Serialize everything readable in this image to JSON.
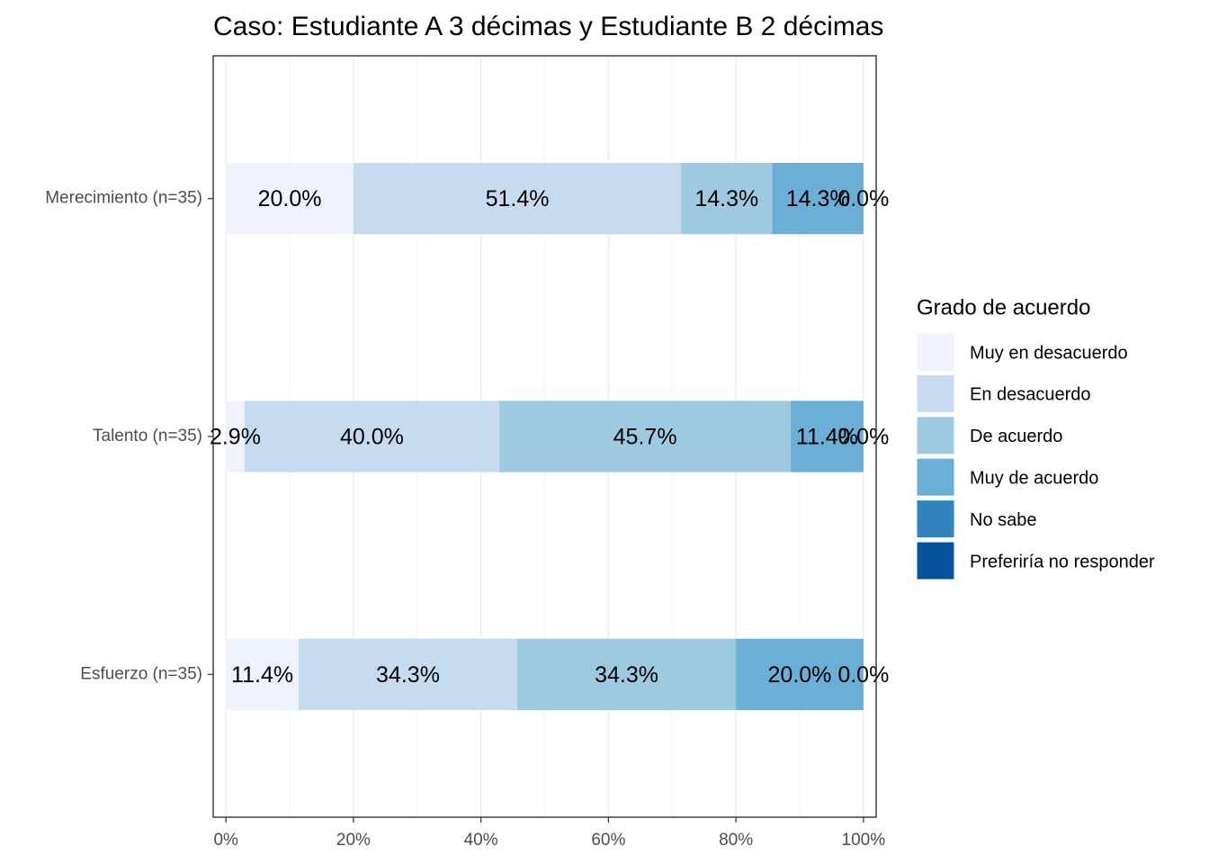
{
  "chart_data": {
    "type": "stacked_barh",
    "title": "Caso: Estudiante A 3 décimas y Estudiante B 2 décimas",
    "categories": [
      "Esfuerzo (n=35)",
      "Talento (n=35)",
      "Merecimiento (n=35)"
    ],
    "legend_title": "Grado de acuerdo",
    "legend_position": "right",
    "series": [
      {
        "name": "Muy en desacuerdo",
        "color": "#eff3ff",
        "values": [
          11.4,
          2.9,
          20.0
        ],
        "value_labels": [
          "11.4%",
          "2.9%",
          "20.0%"
        ]
      },
      {
        "name": "En desacuerdo",
        "color": "#c6dbef",
        "values": [
          34.3,
          40.0,
          51.4
        ],
        "value_labels": [
          "34.3%",
          "40.0%",
          "51.4%"
        ]
      },
      {
        "name": "De acuerdo",
        "color": "#9ecae1",
        "values": [
          34.3,
          45.7,
          14.3
        ],
        "value_labels": [
          "34.3%",
          "45.7%",
          "14.3%"
        ]
      },
      {
        "name": "Muy de acuerdo",
        "color": "#6baed6",
        "values": [
          20.0,
          11.4,
          14.3
        ],
        "value_labels": [
          "20.0%",
          "11.4%",
          "14.3%"
        ]
      },
      {
        "name": "No sabe",
        "color": "#3182bd",
        "values": [
          0.0,
          0.0,
          0.0
        ],
        "value_labels": [
          "0.0%",
          "0.0%",
          "0.0%"
        ]
      },
      {
        "name": "Preferiría no responder",
        "color": "#08519c",
        "values": [
          null,
          null,
          null
        ]
      }
    ],
    "xlim": [
      -2,
      102
    ],
    "xticks": [
      {
        "value": 0,
        "label": "0%"
      },
      {
        "value": 20,
        "label": "20%"
      },
      {
        "value": 40,
        "label": "40%"
      },
      {
        "value": 60,
        "label": "60%"
      },
      {
        "value": 80,
        "label": "80%"
      },
      {
        "value": 100,
        "label": "100%"
      }
    ],
    "grid": true
  }
}
